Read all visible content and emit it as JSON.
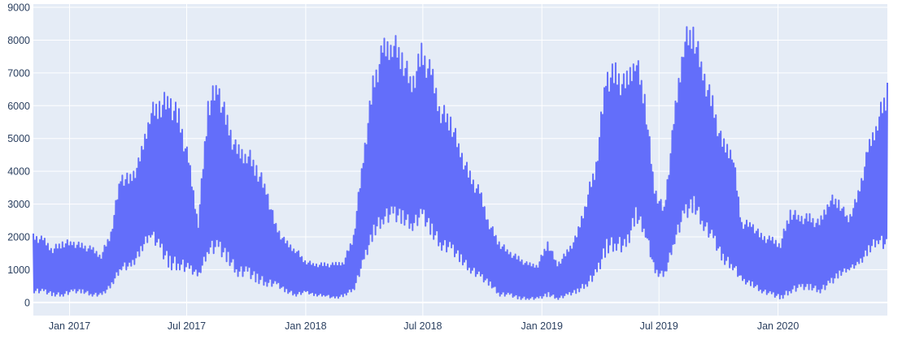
{
  "chart_data": {
    "type": "line",
    "title": "",
    "xlabel": "",
    "ylabel": "",
    "xlim": [
      "2016-11-06",
      "2020-06-18"
    ],
    "ylim": [
      -400,
      9100
    ],
    "grid": true,
    "legend": "none",
    "colors": {
      "line": "#636efa",
      "plot_bg": "#e5ecf6",
      "grid": "#ffffff",
      "text": "#2a3f5f"
    },
    "x_ticks": [
      {
        "date": "2017-01-01",
        "label": "Jan 2017"
      },
      {
        "date": "2017-07-01",
        "label": "Jul 2017"
      },
      {
        "date": "2018-01-01",
        "label": "Jan 2018"
      },
      {
        "date": "2018-07-01",
        "label": "Jul 2018"
      },
      {
        "date": "2019-01-01",
        "label": "Jan 2019"
      },
      {
        "date": "2019-07-01",
        "label": "Jul 2019"
      },
      {
        "date": "2020-01-01",
        "label": "Jan 2020"
      }
    ],
    "y_ticks": [
      0,
      1000,
      2000,
      3000,
      4000,
      5000,
      6000,
      7000,
      8000,
      9000
    ],
    "series": [
      {
        "x": [
          "2016-11-06",
          "2016-11-21",
          "2016-12-06",
          "2016-12-21",
          "2017-01-05",
          "2017-01-20",
          "2017-02-04",
          "2017-02-19",
          "2017-03-06",
          "2017-03-21",
          "2017-04-05",
          "2017-04-20",
          "2017-05-05",
          "2017-05-20",
          "2017-06-04",
          "2017-06-19",
          "2017-07-04",
          "2017-07-19",
          "2017-08-03",
          "2017-08-18",
          "2017-09-02",
          "2017-09-17",
          "2017-10-02",
          "2017-10-17",
          "2017-11-01",
          "2017-11-16",
          "2017-12-01",
          "2017-12-16",
          "2017-12-31",
          "2018-01-15",
          "2018-01-30",
          "2018-02-14",
          "2018-03-01",
          "2018-03-16",
          "2018-03-31",
          "2018-04-15",
          "2018-04-30",
          "2018-05-15",
          "2018-05-30",
          "2018-06-14",
          "2018-06-29",
          "2018-07-14",
          "2018-07-29",
          "2018-08-13",
          "2018-08-28",
          "2018-09-12",
          "2018-09-27",
          "2018-10-12",
          "2018-10-27",
          "2018-11-11",
          "2018-11-26",
          "2018-12-11",
          "2018-12-26",
          "2019-01-10",
          "2019-01-25",
          "2019-02-09",
          "2019-02-24",
          "2019-03-11",
          "2019-03-26",
          "2019-04-10",
          "2019-04-25",
          "2019-05-10",
          "2019-05-25",
          "2019-06-09",
          "2019-06-24",
          "2019-07-09",
          "2019-07-24",
          "2019-08-08",
          "2019-08-23",
          "2019-09-07",
          "2019-09-22",
          "2019-10-07",
          "2019-10-22",
          "2019-11-06",
          "2019-11-21",
          "2019-12-06",
          "2019-12-21",
          "2020-01-05",
          "2020-01-20",
          "2020-02-04",
          "2020-02-19",
          "2020-03-05",
          "2020-03-20",
          "2020-04-04",
          "2020-04-19",
          "2020-05-04",
          "2020-05-19",
          "2020-06-03",
          "2020-06-18"
        ],
        "hi": [
          2100,
          2000,
          1700,
          1900,
          1900,
          1800,
          1700,
          1500,
          2200,
          4000,
          3900,
          4500,
          6000,
          6300,
          6500,
          5900,
          4500,
          2500,
          6300,
          6900,
          5700,
          4800,
          4800,
          4300,
          3600,
          2400,
          1900,
          1700,
          1300,
          1200,
          1200,
          1200,
          1300,
          2100,
          4600,
          6900,
          8000,
          8300,
          7800,
          6900,
          7900,
          7300,
          6100,
          5800,
          4800,
          4000,
          3500,
          2500,
          1900,
          1600,
          1400,
          1200,
          1200,
          1900,
          1200,
          1600,
          2100,
          3300,
          4400,
          7200,
          7300,
          6900,
          7800,
          6500,
          3600,
          2900,
          5700,
          8300,
          8600,
          7300,
          6300,
          5000,
          4900,
          2500,
          2500,
          2100,
          2000,
          1900,
          2900,
          2700,
          2700,
          2500,
          3300,
          3200,
          2600,
          3400,
          4800,
          5800,
          6700
        ],
        "lo": [
          300,
          300,
          200,
          200,
          300,
          300,
          200,
          200,
          500,
          1000,
          1000,
          1500,
          2000,
          1500,
          1000,
          1000,
          900,
          800,
          1500,
          1500,
          1200,
          800,
          800,
          600,
          500,
          500,
          300,
          200,
          300,
          200,
          200,
          100,
          200,
          400,
          1200,
          2000,
          2400,
          2500,
          2400,
          2200,
          2500,
          2000,
          1600,
          1500,
          1200,
          900,
          700,
          500,
          200,
          200,
          100,
          100,
          100,
          200,
          100,
          200,
          300,
          500,
          800,
          1500,
          1600,
          1500,
          2500,
          2000,
          800,
          800,
          1800,
          2500,
          2800,
          2200,
          1800,
          1200,
          1000,
          600,
          500,
          300,
          200,
          100,
          300,
          400,
          400,
          300,
          500,
          800,
          1000,
          1100,
          1500,
          1800,
          1500
        ]
      }
    ]
  }
}
